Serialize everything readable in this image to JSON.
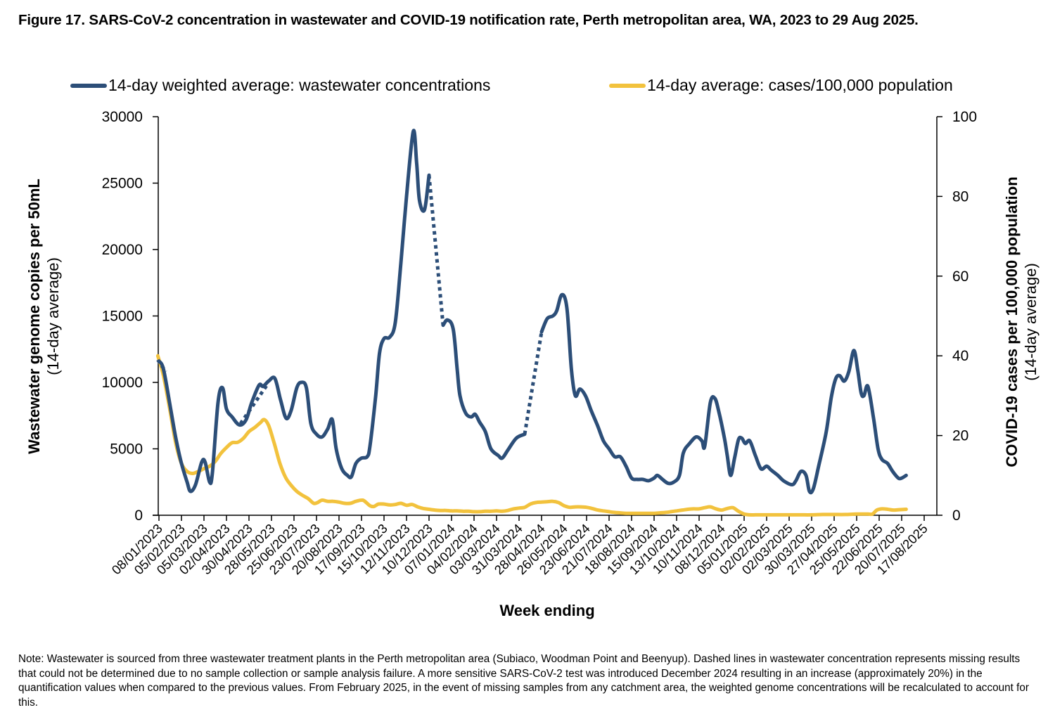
{
  "chart_data": {
    "type": "line",
    "title": "Figure 17. SARS-CoV-2 concentration in wastewater and COVID-19 notification rate, Perth metropolitan area, WA, 2023 to 29 Aug 2025.",
    "xlabel": "Week ending",
    "ylabel_left": "Wastewater genome copies per 50mL",
    "ylabel_left_sub": "(14-day average)",
    "ylabel_right": "COVID-19 cases per 100,000 population",
    "ylabel_right_sub": "(14-day average)",
    "ylim_left": [
      0,
      30000
    ],
    "ylim_right": [
      0,
      100
    ],
    "yticks_left": [
      "0",
      "5000",
      "10000",
      "15000",
      "20000",
      "25000",
      "30000"
    ],
    "yticks_right": [
      "0",
      "20",
      "40",
      "60",
      "80",
      "100"
    ],
    "grid": false,
    "legend_position": "top",
    "x_tick_labels": [
      "08/01/2023",
      "05/02/2023",
      "05/03/2023",
      "02/04/2023",
      "30/04/2023",
      "28/05/2023",
      "25/06/2023",
      "23/07/2023",
      "20/08/2023",
      "17/09/2023",
      "15/10/2023",
      "12/11/2023",
      "10/12/2023",
      "07/01/2024",
      "04/02/2024",
      "03/03/2024",
      "31/03/2024",
      "28/04/2024",
      "26/05/2024",
      "23/06/2024",
      "21/07/2024",
      "18/08/2024",
      "15/09/2024",
      "13/10/2024",
      "10/11/2024",
      "08/12/2024",
      "05/01/2025",
      "02/02/2025",
      "02/03/2025",
      "30/03/2025",
      "27/04/2025",
      "25/05/2025",
      "22/06/2025",
      "20/07/2025",
      "17/08/2025"
    ],
    "x_unit": "weeks since 08/01/2023 (x tick every 4 weeks)",
    "series": [
      {
        "name": "14-day weighted average: wastewater concentrations",
        "axis": "left",
        "color": "#2c4e78",
        "points": [
          [
            0,
            11600
          ],
          [
            0.8,
            11000
          ],
          [
            2,
            8200
          ],
          [
            3,
            5800
          ],
          [
            4,
            3900
          ],
          [
            5,
            2500
          ],
          [
            5.6,
            1800
          ],
          [
            6.5,
            2300
          ],
          [
            7.6,
            4000
          ],
          [
            8.2,
            4000
          ],
          [
            9,
            2500
          ],
          [
            9.5,
            3200
          ],
          [
            10.5,
            8500
          ],
          [
            11.3,
            9600
          ],
          [
            12,
            8000
          ],
          [
            13,
            7400
          ],
          [
            14.3,
            6800
          ],
          [
            15.5,
            7200
          ],
          [
            16.5,
            8500
          ],
          [
            17.8,
            9800
          ],
          [
            18.5,
            9700
          ],
          [
            19.5,
            10100
          ],
          [
            20.6,
            10300
          ],
          [
            21.6,
            8700
          ],
          [
            22.6,
            7300
          ],
          [
            23.5,
            7900
          ],
          [
            24.5,
            9600
          ],
          [
            25.3,
            10000
          ],
          [
            26.2,
            9600
          ],
          [
            27,
            6900
          ],
          [
            28,
            6100
          ],
          [
            29,
            5900
          ],
          [
            30,
            6500
          ],
          [
            30.8,
            7200
          ],
          [
            31.5,
            5000
          ],
          [
            32.5,
            3500
          ],
          [
            33.5,
            3000
          ],
          [
            34.2,
            2900
          ],
          [
            35,
            3900
          ],
          [
            36,
            4300
          ],
          [
            37,
            4400
          ],
          [
            37.5,
            5200
          ],
          [
            38.5,
            8900
          ],
          [
            39.2,
            12200
          ],
          [
            40,
            13300
          ],
          [
            41,
            13400
          ],
          [
            42,
            14500
          ],
          [
            43,
            19000
          ],
          [
            44,
            24000
          ],
          [
            45.2,
            28900
          ],
          [
            45.8,
            26500
          ],
          [
            46.3,
            23700
          ],
          [
            47.2,
            23000
          ],
          [
            48,
            25600
          ]
        ],
        "dashed_segments": [
          [
            [
              -0.2,
              11700
            ],
            [
              1.2,
              10800
            ]
          ],
          [
            [
              14.5,
              6900
            ],
            [
              19.2,
              9800
            ]
          ],
          [
            [
              48,
              25600
            ],
            [
              50.5,
              14300
            ]
          ],
          [
            [
              65,
              6100
            ],
            [
              68,
              13800
            ]
          ]
        ],
        "points_b": [
          [
            50.5,
            14300
          ],
          [
            51.3,
            14700
          ],
          [
            52.3,
            14000
          ],
          [
            53,
            11000
          ],
          [
            53.5,
            9000
          ],
          [
            54.5,
            7700
          ],
          [
            55.5,
            7400
          ],
          [
            56.2,
            7600
          ],
          [
            57,
            7000
          ],
          [
            58,
            6300
          ],
          [
            59,
            5000
          ],
          [
            60.3,
            4500
          ],
          [
            61,
            4300
          ],
          [
            62,
            4900
          ],
          [
            63.5,
            5800
          ],
          [
            65,
            6100
          ]
        ],
        "points_c": [
          [
            68,
            13800
          ],
          [
            69,
            14800
          ],
          [
            70,
            15000
          ],
          [
            70.7,
            15400
          ],
          [
            71.6,
            16600
          ],
          [
            72.5,
            15600
          ],
          [
            73.3,
            11000
          ],
          [
            74,
            9000
          ],
          [
            74.8,
            9500
          ],
          [
            75.8,
            9000
          ],
          [
            76.8,
            7900
          ],
          [
            78,
            6700
          ],
          [
            79,
            5600
          ],
          [
            80,
            5000
          ],
          [
            81,
            4400
          ],
          [
            82,
            4400
          ],
          [
            83,
            3700
          ],
          [
            84,
            2800
          ],
          [
            85,
            2700
          ],
          [
            86,
            2700
          ],
          [
            87,
            2600
          ],
          [
            88,
            2800
          ],
          [
            88.6,
            3000
          ],
          [
            89.5,
            2700
          ],
          [
            90.5,
            2400
          ],
          [
            91.5,
            2500
          ],
          [
            92.5,
            3000
          ],
          [
            93.2,
            4700
          ],
          [
            94.3,
            5400
          ],
          [
            95.5,
            5900
          ],
          [
            96.5,
            5600
          ],
          [
            97,
            5200
          ],
          [
            98,
            8500
          ],
          [
            98.8,
            8800
          ],
          [
            99.5,
            7800
          ],
          [
            100.5,
            5800
          ],
          [
            101,
            4500
          ],
          [
            101.6,
            3000
          ],
          [
            102.3,
            4300
          ],
          [
            103,
            5700
          ],
          [
            103.6,
            5800
          ],
          [
            104.2,
            5400
          ],
          [
            105,
            5600
          ],
          [
            106,
            4500
          ],
          [
            107,
            3500
          ],
          [
            108,
            3700
          ],
          [
            108.8,
            3400
          ],
          [
            110,
            3000
          ],
          [
            111,
            2600
          ],
          [
            112.5,
            2300
          ],
          [
            113.2,
            2600
          ],
          [
            114.1,
            3300
          ],
          [
            115,
            3000
          ],
          [
            115.6,
            1800
          ],
          [
            116.3,
            2000
          ],
          [
            117.3,
            3800
          ],
          [
            118.6,
            6300
          ],
          [
            119.5,
            8900
          ],
          [
            120.3,
            10300
          ],
          [
            121,
            10500
          ],
          [
            121.8,
            10100
          ],
          [
            122.6,
            10800
          ],
          [
            123.5,
            12400
          ],
          [
            124.2,
            10900
          ],
          [
            124.8,
            9200
          ],
          [
            125.3,
            9000
          ],
          [
            126,
            9700
          ],
          [
            127,
            7300
          ],
          [
            127.8,
            5000
          ],
          [
            128.5,
            4200
          ],
          [
            129.5,
            3900
          ],
          [
            130.4,
            3300
          ],
          [
            131.4,
            2800
          ],
          [
            132,
            2800
          ],
          [
            132.8,
            3000
          ]
        ]
      },
      {
        "name": "14-day average: cases/100,000 population",
        "axis": "right",
        "color": "#f2c23d",
        "points": [
          [
            -0.2,
            40
          ],
          [
            0.8,
            35
          ],
          [
            2,
            26
          ],
          [
            3,
            18
          ],
          [
            4,
            13
          ],
          [
            5,
            11
          ],
          [
            6,
            10.5
          ],
          [
            7,
            11
          ],
          [
            8,
            11.7
          ],
          [
            9,
            12.3
          ],
          [
            10,
            13.5
          ],
          [
            11,
            15.5
          ],
          [
            12,
            17
          ],
          [
            13,
            18.2
          ],
          [
            14,
            18.3
          ],
          [
            15,
            19.3
          ],
          [
            16,
            21
          ],
          [
            17,
            22
          ],
          [
            18,
            23.2
          ],
          [
            18.7,
            24
          ],
          [
            19.5,
            22.5
          ],
          [
            20.5,
            18
          ],
          [
            21.5,
            13
          ],
          [
            22.5,
            9.5
          ],
          [
            23.5,
            7.5
          ],
          [
            24.5,
            6
          ],
          [
            25.5,
            5
          ],
          [
            26.5,
            4.2
          ],
          [
            27.5,
            3
          ],
          [
            28.2,
            3.2
          ],
          [
            29,
            3.8
          ],
          [
            30,
            3.5
          ],
          [
            31,
            3.5
          ],
          [
            32,
            3.3
          ],
          [
            33,
            3.0
          ],
          [
            34,
            3.0
          ],
          [
            35,
            3.5
          ],
          [
            36,
            3.8
          ],
          [
            36.5,
            3.6
          ],
          [
            37.5,
            2.4
          ],
          [
            38.2,
            2.2
          ],
          [
            39,
            2.8
          ],
          [
            40,
            2.8
          ],
          [
            41,
            2.6
          ],
          [
            42,
            2.7
          ],
          [
            43,
            3.0
          ],
          [
            44,
            2.5
          ],
          [
            45,
            2.7
          ],
          [
            46,
            2.1
          ],
          [
            47,
            1.7
          ],
          [
            48,
            1.5
          ],
          [
            49,
            1.3
          ],
          [
            50,
            1.2
          ],
          [
            51,
            1.2
          ],
          [
            52,
            1.1
          ],
          [
            53,
            1.1
          ],
          [
            54,
            1.0
          ],
          [
            55,
            1.0
          ],
          [
            56,
            0.9
          ],
          [
            57,
            0.9
          ],
          [
            58,
            1.0
          ],
          [
            59,
            1.0
          ],
          [
            60,
            1.1
          ],
          [
            61,
            1.0
          ],
          [
            62,
            1.2
          ],
          [
            63,
            1.6
          ],
          [
            64,
            1.8
          ],
          [
            65,
            2.0
          ],
          [
            66,
            2.8
          ],
          [
            67,
            3.2
          ],
          [
            68,
            3.3
          ],
          [
            69,
            3.4
          ],
          [
            70,
            3.5
          ],
          [
            71,
            3.2
          ],
          [
            72,
            2.4
          ],
          [
            73,
            2.0
          ],
          [
            74,
            2.1
          ],
          [
            75,
            2.1
          ],
          [
            76,
            2.0
          ],
          [
            77,
            1.7
          ],
          [
            78,
            1.3
          ],
          [
            79,
            1.1
          ],
          [
            80,
            0.9
          ],
          [
            81,
            0.7
          ],
          [
            82,
            0.6
          ],
          [
            83,
            0.5
          ],
          [
            84,
            0.5
          ],
          [
            85,
            0.5
          ],
          [
            86,
            0.5
          ],
          [
            87,
            0.5
          ],
          [
            88,
            0.5
          ],
          [
            89,
            0.6
          ],
          [
            90,
            0.7
          ],
          [
            91,
            0.9
          ],
          [
            92,
            1.1
          ],
          [
            93,
            1.3
          ],
          [
            94,
            1.5
          ],
          [
            95,
            1.6
          ],
          [
            96,
            1.6
          ],
          [
            97,
            1.9
          ],
          [
            98,
            2.1
          ],
          [
            99,
            1.6
          ],
          [
            100,
            1.3
          ],
          [
            101,
            1.7
          ],
          [
            102,
            1.9
          ],
          [
            103,
            1.0
          ],
          [
            104,
            0.3
          ],
          [
            105,
            0.1
          ],
          [
            106,
            0.1
          ],
          [
            107,
            0.1
          ],
          [
            108,
            0.1
          ],
          [
            110,
            0.1
          ],
          [
            112,
            0.1
          ],
          [
            114,
            0.1
          ],
          [
            116,
            0.1
          ],
          [
            118,
            0.2
          ],
          [
            120,
            0.2
          ],
          [
            122,
            0.2
          ],
          [
            124,
            0.3
          ],
          [
            126,
            0.3
          ],
          [
            126.8,
            0.3
          ],
          [
            127.6,
            1.3
          ],
          [
            128.5,
            1.6
          ],
          [
            129.5,
            1.5
          ],
          [
            130.5,
            1.3
          ],
          [
            131.5,
            1.4
          ],
          [
            132.8,
            1.5
          ]
        ]
      }
    ],
    "notes": "Dashed segments of the wastewater line indicate missing results."
  },
  "title": "Figure 17. SARS-CoV-2 concentration in wastewater and COVID-19 notification rate, Perth metropolitan area, WA, 2023 to 29 Aug 2025.",
  "legend": [
    {
      "label": "14-day weighted average: wastewater concentrations",
      "color": "#2c4e78"
    },
    {
      "label": "14-day average: cases/100,000 population",
      "color": "#f2c23d"
    }
  ],
  "note": "Note: Wastewater is sourced from three wastewater treatment plants in the Perth metropolitan area (Subiaco, Woodman Point and Beenyup). Dashed lines in wastewater concentration represents missing results that could not be determined due to no sample collection or sample analysis failure. A more sensitive SARS-CoV-2 test was introduced December 2024 resulting in an increase (approximately 20%) in the quantification values when compared to the previous values. From February 2025, in the event of missing samples from any catchment area, the weighted genome concentrations will be recalculated to account for this."
}
